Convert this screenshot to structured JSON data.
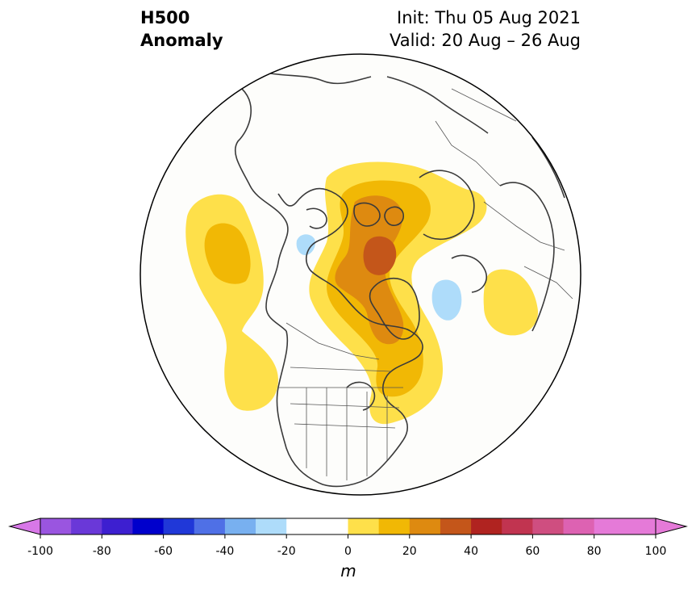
{
  "title": {
    "variable": "H500",
    "field": "Anomaly",
    "init": "Init: Thu 05 Aug 2021",
    "valid": "Valid: 20 Aug – 26 Aug"
  },
  "map": {
    "projection": "north-polar-stereographic",
    "region": "Northern Hemisphere centered on North America / Arctic",
    "features": [
      "coastlines",
      "country-borders",
      "us-state-borders"
    ],
    "anomalies": [
      {
        "name": "positive-anomaly-arctic-greenland",
        "max_level": 50,
        "sign": "positive"
      },
      {
        "name": "positive-anomaly-north-pacific",
        "max_level": 30,
        "sign": "positive"
      },
      {
        "name": "positive-anomaly-europe",
        "max_level": 20,
        "sign": "positive"
      },
      {
        "name": "negative-anomaly-north-atlantic",
        "min_level": -20,
        "sign": "negative"
      },
      {
        "name": "negative-anomaly-bering-sea",
        "min_level": -20,
        "sign": "negative"
      }
    ]
  },
  "colorbar": {
    "unit": "m",
    "levels": [
      -100,
      -90,
      -80,
      -70,
      -60,
      -50,
      -40,
      -30,
      -20,
      -10,
      0,
      10,
      20,
      30,
      40,
      50,
      60,
      70,
      80,
      90,
      100
    ],
    "colors": [
      "#9a55e0",
      "#6a38d8",
      "#3d1fd0",
      "#0000cc",
      "#2038d8",
      "#4f70e6",
      "#78b0f0",
      "#aedcfa",
      "#ffffff",
      "#ffffff",
      "#fee04a",
      "#f1b805",
      "#de8a10",
      "#c4561a",
      "#b02320",
      "#c13450",
      "#cf4e80",
      "#dd62b2",
      "#e57ad8",
      "#e57ad8"
    ],
    "extend_low_color": "#d878e8",
    "extend_high_color": "#e57ad8",
    "tick_labels": [
      "-100",
      "-80",
      "-60",
      "-40",
      "-20",
      "0",
      "20",
      "40",
      "60",
      "80",
      "100"
    ]
  }
}
